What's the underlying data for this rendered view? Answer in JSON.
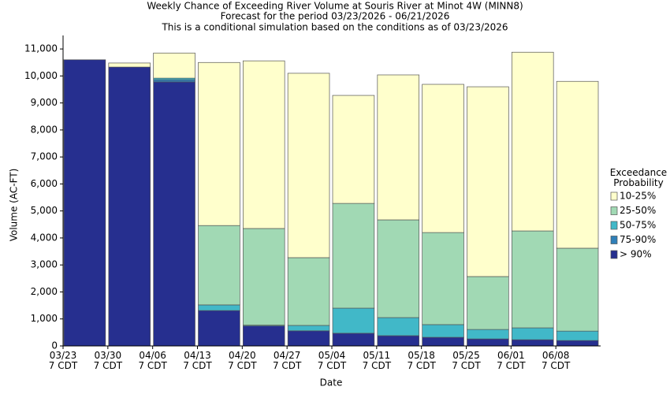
{
  "chart_data": {
    "type": "stacked_bar",
    "title": "Weekly Chance of Exceeding River Volume at Souris River at Minot 4W (MINN8)",
    "subtitles": [
      "Forecast for the period 03/23/2026 - 06/21/2026",
      "This is a conditional simulation based on the conditions as of 03/23/2026"
    ],
    "x_label": "Date",
    "y_label": "Volume (AC-FT)",
    "legend_title": "Exceedance\nProbability",
    "legend": "right",
    "categories": [
      "03/23\n7 CDT",
      "03/30\n7 CDT",
      "04/06\n7 CDT",
      "04/13\n7 CDT",
      "04/20\n7 CDT",
      "04/27\n7 CDT",
      "05/04\n7 CDT",
      "05/11\n7 CDT",
      "05/18\n7 CDT",
      "05/25\n7 CDT",
      "06/01\n7 CDT",
      "06/08\n7 CDT"
    ],
    "series": [
      {
        "name": "> 90%",
        "color": "#262f8f",
        "values": [
          10600,
          10330,
          9780,
          1310,
          740,
          560,
          470,
          380,
          320,
          260,
          230,
          200
        ]
      },
      {
        "name": "75-90%",
        "color": "#2f7fb8",
        "values": [
          0,
          0,
          80,
          0,
          0,
          0,
          0,
          0,
          0,
          0,
          0,
          0
        ]
      },
      {
        "name": "50-75%",
        "color": "#41b8c8",
        "values": [
          0,
          0,
          60,
          210,
          30,
          200,
          930,
          670,
          470,
          350,
          440,
          350
        ]
      },
      {
        "name": "25-50%",
        "color": "#a1d9b4",
        "values": [
          0,
          0,
          0,
          2940,
          3580,
          2510,
          3880,
          3620,
          3410,
          1960,
          3590,
          3070
        ]
      },
      {
        "name": "10-25%",
        "color": "#ffffcc",
        "values": [
          0,
          150,
          930,
          6040,
          6210,
          6830,
          4000,
          5370,
          5490,
          7030,
          6620,
          6180
        ]
      }
    ],
    "ylim": [
      0,
      11500
    ],
    "yticks": [
      0,
      {
        "value": 1000,
        "label": "1,000"
      },
      {
        "value": 2000,
        "label": "2,000"
      },
      {
        "value": 3000,
        "label": "3,000"
      },
      {
        "value": 4000,
        "label": "4,000"
      },
      {
        "value": 5000,
        "label": "5,000"
      },
      {
        "value": 6000,
        "label": "6,000"
      },
      {
        "value": 7000,
        "label": "7,000"
      },
      {
        "value": 8000,
        "label": "8,000"
      },
      {
        "value": 9000,
        "label": "9,000"
      },
      {
        "value": 10000,
        "label": "10,000"
      },
      {
        "value": 11000,
        "label": "11,000"
      }
    ],
    "grid": false
  }
}
